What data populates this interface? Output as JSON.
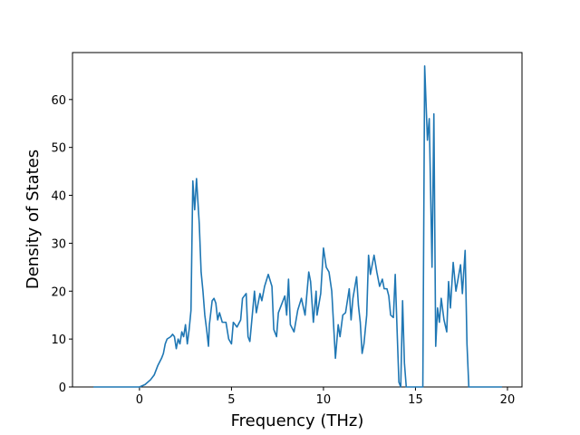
{
  "chart_data": {
    "type": "line",
    "xlabel": "Frequency (THz)",
    "ylabel": "Density of States",
    "xlim": [
      -3.64,
      20.79
    ],
    "ylim": [
      0,
      69.8
    ],
    "xticks": [
      0,
      5,
      10,
      15,
      20
    ],
    "yticks": [
      0,
      10,
      20,
      30,
      40,
      50,
      60
    ],
    "grid": false,
    "series": [
      {
        "color": "#1f77b4",
        "x": [
          -2.5,
          0,
          0.3,
          0.6,
          0.8,
          1.0,
          1.2,
          1.3,
          1.4,
          1.5,
          1.7,
          1.8,
          1.9,
          2.0,
          2.1,
          2.2,
          2.3,
          2.4,
          2.5,
          2.6,
          2.7,
          2.8,
          2.85,
          2.9,
          3.0,
          3.1,
          3.25,
          3.35,
          3.45,
          3.55,
          3.65,
          3.75,
          3.8,
          3.95,
          4.05,
          4.15,
          4.25,
          4.35,
          4.5,
          4.7,
          4.85,
          5.0,
          5.1,
          5.3,
          5.5,
          5.6,
          5.8,
          5.9,
          6.0,
          6.25,
          6.35,
          6.55,
          6.65,
          6.8,
          7.0,
          7.2,
          7.3,
          7.45,
          7.55,
          7.9,
          8.0,
          8.1,
          8.2,
          8.4,
          8.6,
          8.8,
          9.0,
          9.2,
          9.3,
          9.45,
          9.6,
          9.65,
          9.85,
          10.0,
          10.15,
          10.3,
          10.45,
          10.65,
          10.8,
          10.9,
          11.05,
          11.2,
          11.4,
          11.5,
          11.6,
          11.8,
          11.9,
          12.0,
          12.1,
          12.2,
          12.35,
          12.45,
          12.55,
          12.75,
          12.9,
          13.05,
          13.2,
          13.3,
          13.45,
          13.55,
          13.65,
          13.8,
          13.9,
          14.0,
          14.1,
          14.2,
          14.3,
          14.4,
          14.5,
          15.4,
          15.5,
          15.65,
          15.75,
          15.9,
          16.0,
          16.1,
          16.2,
          16.3,
          16.4,
          16.55,
          16.7,
          16.8,
          16.9,
          17.05,
          17.2,
          17.45,
          17.55,
          17.7,
          17.8,
          17.9,
          19.7
        ],
        "values": [
          0,
          0,
          0.5,
          1.5,
          2.5,
          4.5,
          6,
          7,
          9,
          10,
          10.5,
          11,
          10.5,
          8,
          10,
          9,
          11.5,
          10.5,
          13,
          9,
          12,
          16,
          30,
          43,
          37,
          43.5,
          34,
          24,
          20,
          15,
          12,
          8.5,
          13,
          18,
          18.5,
          17.5,
          14,
          15.5,
          13.5,
          13.5,
          10,
          9,
          13.5,
          12.5,
          14,
          18.5,
          19.5,
          10.5,
          9.5,
          20,
          15.5,
          19.5,
          18,
          21,
          23.5,
          21,
          12,
          10.5,
          15.5,
          19,
          15,
          22.5,
          13,
          11.5,
          16,
          18.5,
          15,
          24,
          22,
          13.5,
          20,
          15,
          19.5,
          29,
          25,
          24,
          20,
          6,
          13,
          10.5,
          15,
          15.5,
          20.5,
          14,
          18.5,
          23,
          17,
          13.5,
          7,
          9,
          15,
          27.5,
          23.5,
          27.5,
          24,
          21,
          22.5,
          20.5,
          20.5,
          19,
          15,
          14.5,
          23.5,
          12,
          1,
          0,
          18,
          5,
          0,
          0,
          67,
          51.5,
          56,
          25,
          57,
          8.5,
          16.5,
          13.5,
          18.5,
          14,
          11.5,
          22,
          16.5,
          26,
          20,
          25.5,
          19.5,
          28.5,
          9,
          0,
          0
        ]
      }
    ]
  }
}
